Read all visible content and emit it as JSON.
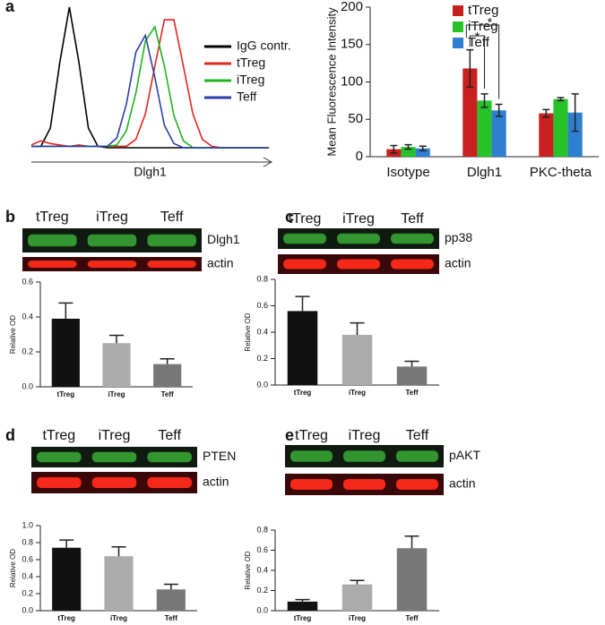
{
  "chart_data": [
    {
      "type": "line",
      "panel_label": "a",
      "x_label": "Dlgh1",
      "x": [
        0,
        4,
        8,
        12,
        16,
        20,
        24,
        28,
        32,
        36,
        40,
        44,
        48,
        52,
        56,
        60,
        64,
        68,
        72,
        76,
        80,
        84,
        88,
        92,
        96,
        100
      ],
      "xlim": [
        0,
        100
      ],
      "ylim": [
        0,
        100
      ],
      "series": [
        {
          "name": "IgG contr.",
          "color": "#000000",
          "values": [
            1,
            1,
            14,
            61,
            100,
            61,
            14,
            1,
            0,
            0,
            0,
            0,
            0,
            0,
            0,
            0,
            0,
            0,
            0,
            0,
            0,
            0,
            0,
            0,
            0,
            0
          ]
        },
        {
          "name": "tTreg",
          "color": "#e3261f",
          "values": [
            2,
            5,
            3,
            2,
            1,
            2,
            1,
            1,
            1,
            1,
            1,
            6,
            24,
            58,
            91,
            91,
            58,
            24,
            6,
            1,
            0,
            0,
            0,
            0,
            0,
            0
          ]
        },
        {
          "name": "iTreg",
          "color": "#1fb31f",
          "values": [
            1,
            1,
            1,
            1,
            1,
            1,
            1,
            1,
            1,
            2,
            12,
            39,
            76,
            86,
            58,
            23,
            5,
            0,
            0,
            0,
            0,
            0,
            0,
            0,
            0,
            0
          ]
        },
        {
          "name": "Teff",
          "color": "#2a3fa8",
          "values": [
            1,
            1,
            1,
            1,
            1,
            1,
            1,
            1,
            1,
            7,
            31,
            68,
            80,
            50,
            16,
            3,
            0,
            0,
            0,
            0,
            0,
            0,
            0,
            0,
            0,
            0
          ]
        }
      ]
    },
    {
      "type": "bar",
      "y_label": "Mean Fluorescence Intensity",
      "categories": [
        "Isotype",
        "Dlgh1",
        "PKC-theta"
      ],
      "series": [
        {
          "name": "tTreg",
          "color": "#c8201f",
          "values": [
            10,
            118,
            58
          ],
          "errors": [
            5,
            25,
            5
          ]
        },
        {
          "name": "iTreg",
          "color": "#27c22a",
          "values": [
            13,
            75,
            77
          ],
          "errors": [
            3,
            9,
            2
          ]
        },
        {
          "name": "Teff",
          "color": "#2f7fd1",
          "values": [
            11,
            62,
            59
          ],
          "errors": [
            3,
            8,
            25
          ]
        }
      ],
      "annotations": [
        "*",
        "*"
      ],
      "ylim": [
        0,
        200
      ],
      "yticks": [
        0,
        50,
        100,
        150,
        200
      ]
    },
    {
      "type": "bar",
      "panel_label": "b",
      "y_label": "Relative OD",
      "blot": {
        "lanes": [
          "tTreg",
          "iTreg",
          "Teff"
        ],
        "rows": [
          "Dlgh1",
          "actin"
        ]
      },
      "categories": [
        "tTreg",
        "iTreg",
        "Teff"
      ],
      "values": [
        0.39,
        0.25,
        0.13
      ],
      "errors": [
        0.09,
        0.045,
        0.03
      ],
      "colors": [
        "#111111",
        "#ababab",
        "#777777"
      ],
      "ylim": [
        0,
        0.6
      ],
      "yticks": [
        {
          "value": 0,
          "label": "0.0"
        },
        0.2,
        0.4,
        0.6
      ]
    },
    {
      "type": "bar",
      "panel_label": "c",
      "y_label": "Relative OD",
      "blot": {
        "lanes": [
          "tTreg",
          "iTreg",
          "Teff"
        ],
        "rows": [
          "pp38",
          "actin"
        ]
      },
      "categories": [
        "tTreg",
        "iTreg",
        "Teff"
      ],
      "values": [
        0.56,
        0.38,
        0.14
      ],
      "errors": [
        0.11,
        0.09,
        0.04
      ],
      "colors": [
        "#111111",
        "#ababab",
        "#777777"
      ],
      "ylim": [
        0,
        0.8
      ],
      "yticks": [
        {
          "value": 0,
          "label": "0.0"
        },
        0.2,
        0.4,
        0.6,
        0.8
      ]
    },
    {
      "type": "bar",
      "panel_label": "d",
      "y_label": "Relative OD",
      "blot": {
        "lanes": [
          "tTreg",
          "iTreg",
          "Teff"
        ],
        "rows": [
          "PTEN",
          "actin"
        ]
      },
      "categories": [
        "tTreg",
        "iTreg",
        "Teff"
      ],
      "values": [
        0.74,
        0.64,
        0.25
      ],
      "errors": [
        0.09,
        0.11,
        0.06
      ],
      "colors": [
        "#111111",
        "#ababab",
        "#777777"
      ],
      "ylim": [
        0,
        1.0
      ],
      "yticks": [
        {
          "value": 0,
          "label": "0.0"
        },
        0.2,
        0.4,
        0.6,
        0.8,
        {
          "value": 1,
          "label": "1.0"
        }
      ]
    },
    {
      "type": "bar",
      "panel_label": "e",
      "y_label": "Relative OD",
      "blot": {
        "lanes": [
          "tTreg",
          "iTreg",
          "Teff"
        ],
        "rows": [
          "pAKT",
          "actin"
        ]
      },
      "categories": [
        "tTreg",
        "iTreg",
        "Teff"
      ],
      "values": [
        0.09,
        0.26,
        0.62
      ],
      "errors": [
        0.02,
        0.04,
        0.12
      ],
      "colors": [
        "#111111",
        "#ababab",
        "#777777"
      ],
      "ylim": [
        0,
        0.8
      ],
      "yticks": [
        {
          "value": 0,
          "label": "0.0"
        },
        0.2,
        0.4,
        0.6,
        0.8
      ]
    }
  ]
}
